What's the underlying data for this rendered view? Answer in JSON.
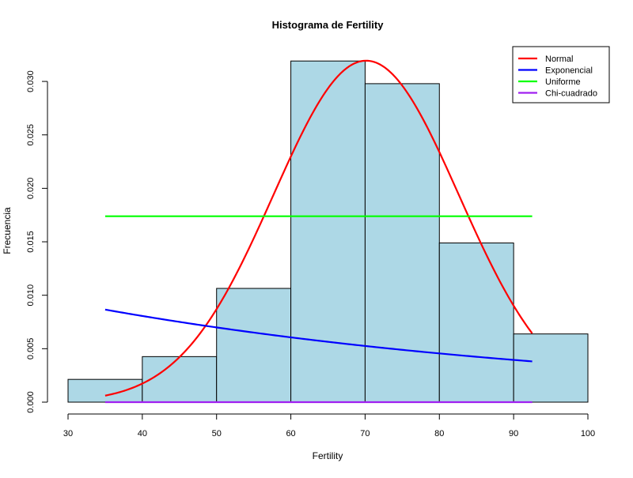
{
  "chart_data": {
    "type": "bar",
    "title": "Histograma de Fertility",
    "xlabel": "Fertility",
    "ylabel": "Frecuencia",
    "xlim": [
      30,
      100
    ],
    "ylim": [
      0,
      0.032
    ],
    "x_ticks": [
      30,
      40,
      50,
      60,
      70,
      80,
      90,
      100
    ],
    "y_ticks": [
      0.0,
      0.005,
      0.01,
      0.015,
      0.02,
      0.025,
      0.03
    ],
    "y_tick_labels": [
      "0.000",
      "0.005",
      "0.010",
      "0.015",
      "0.020",
      "0.025",
      "0.030"
    ],
    "grid": false,
    "legend_position": "top-right",
    "histogram": {
      "bin_edges": [
        30,
        40,
        50,
        60,
        70,
        80,
        90,
        100
      ],
      "density": [
        0.00213,
        0.00426,
        0.01064,
        0.03191,
        0.02979,
        0.01489,
        0.00638
      ],
      "fill_color": "#ADD8E6",
      "border_color": "#000000"
    },
    "series": [
      {
        "name": "Normal",
        "color": "#FF0000",
        "curve": "normal",
        "mean": 70.14,
        "sd": 12.49,
        "x_range": [
          35.0,
          92.5
        ]
      },
      {
        "name": "Exponencial",
        "color": "#0000FF",
        "curve": "exponential",
        "rate": 0.01426,
        "x_range": [
          35.0,
          92.5
        ]
      },
      {
        "name": "Uniforme",
        "color": "#00FF00",
        "curve": "uniform",
        "min": 35.0,
        "max": 92.5,
        "x_range": [
          35.0,
          92.5
        ]
      },
      {
        "name": "Chi-cuadrado",
        "color": "#A020F0",
        "curve": "chisq",
        "df": 1,
        "x_range": [
          35.0,
          92.5
        ]
      }
    ]
  }
}
